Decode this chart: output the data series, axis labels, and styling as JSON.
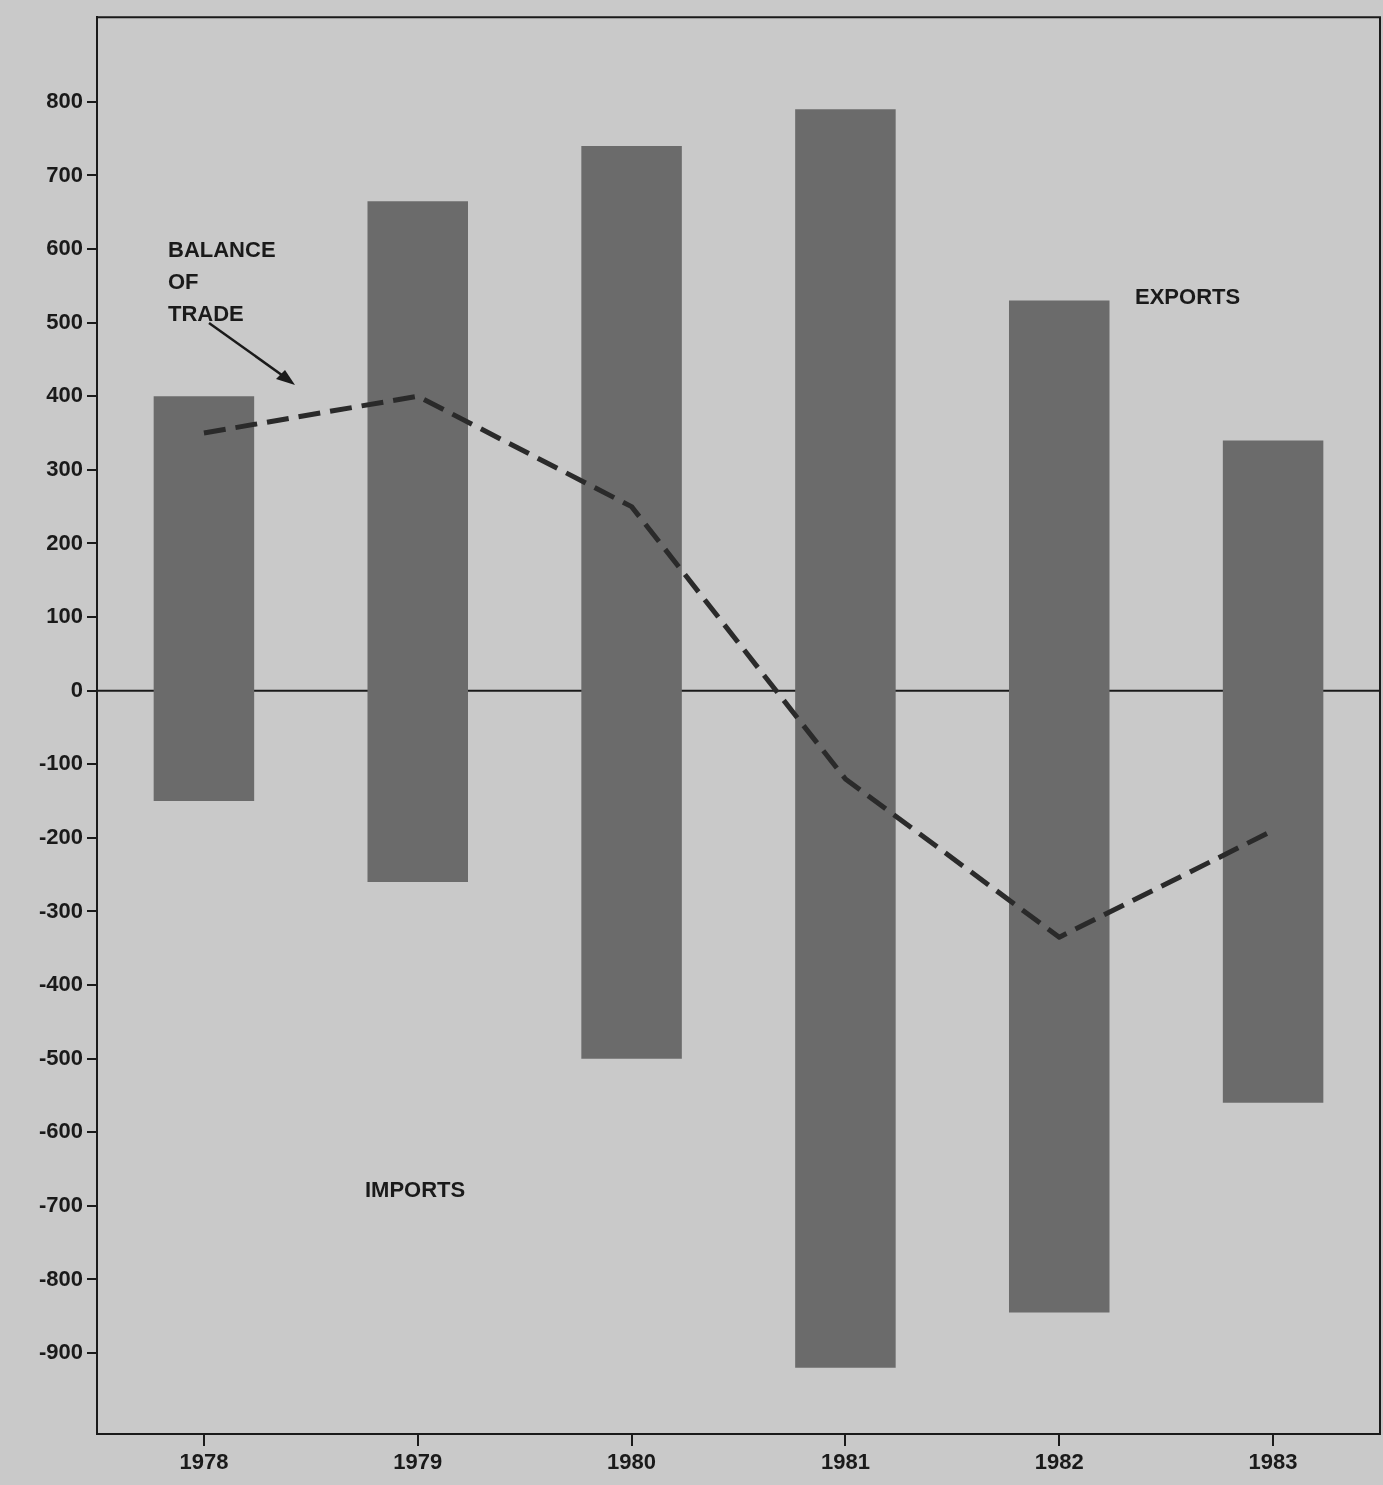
{
  "chart_data": {
    "type": "bar",
    "categories": [
      "1978",
      "1979",
      "1980",
      "1981",
      "1982",
      "1983"
    ],
    "series": [
      {
        "color": "#6b6b6b",
        "base": [
          -150,
          -260,
          -500,
          -920,
          -845,
          -560
        ],
        "values": [
          550,
          925,
          1240,
          1710,
          1375,
          900
        ]
      },
      {
        "type": "line",
        "color": "#2a2a2a",
        "line_style": "dashed",
        "marker": "none",
        "values": [
          350,
          400,
          250,
          -120,
          -335,
          -190
        ]
      }
    ],
    "ylim": [
      -1010,
      915
    ],
    "yticks": [
      -900,
      -800,
      -700,
      -600,
      -500,
      -400,
      -300,
      -200,
      -100,
      0,
      100,
      200,
      300,
      400,
      500,
      600,
      700,
      800
    ],
    "ref_lines": [
      {
        "axis": "y",
        "value": 0
      }
    ],
    "grid": false,
    "legend": false,
    "annotations": [
      "BALANCE OF TRADE",
      "EXPORTS",
      "IMPORTS"
    ]
  }
}
